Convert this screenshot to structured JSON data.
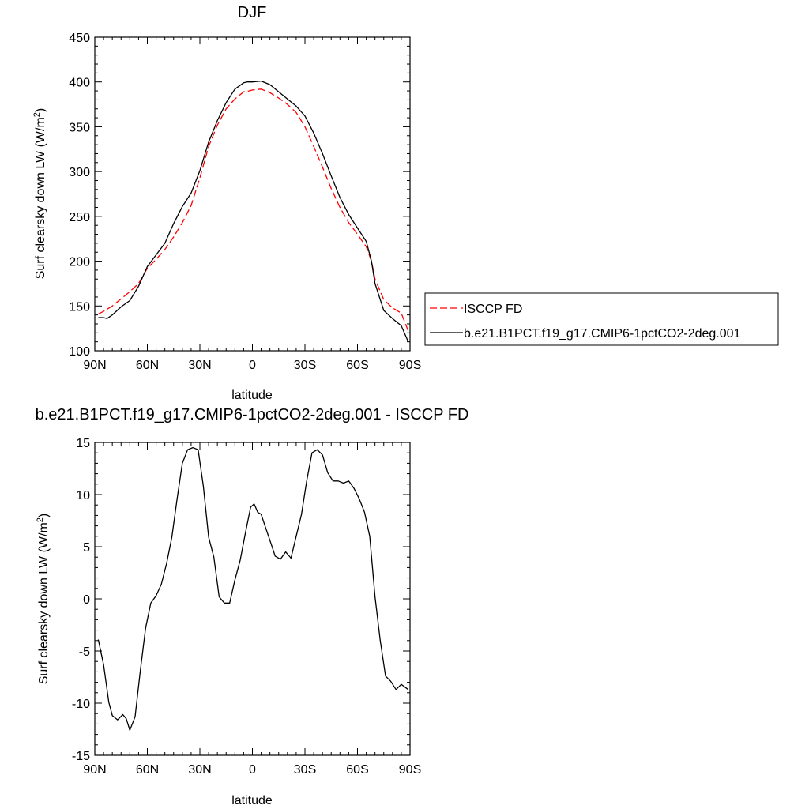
{
  "chart_data": [
    {
      "type": "line",
      "title": "DJF",
      "xlabel": "latitude",
      "ylabel": "Surf clearsky down LW (W/m",
      "ylabel_sup": "2",
      "ylabel_end": ")",
      "xlim": [
        90,
        -90
      ],
      "ylim": [
        100,
        450
      ],
      "x_ticks": [
        {
          "value": 90,
          "label": "90N"
        },
        {
          "value": 60,
          "label": "60N"
        },
        {
          "value": 30,
          "label": "30N"
        },
        {
          "value": 0,
          "label": "0"
        },
        {
          "value": -30,
          "label": "30S"
        },
        {
          "value": -60,
          "label": "60S"
        },
        {
          "value": -90,
          "label": "90S"
        }
      ],
      "y_ticks": [
        100,
        150,
        200,
        250,
        300,
        350,
        400,
        450
      ],
      "grid": false,
      "legend_position": "right",
      "series": [
        {
          "name": "ISCCP FD",
          "style": "dashed",
          "color": "#ff0000",
          "x": [
            88,
            85,
            80,
            75,
            70,
            65,
            60,
            55,
            50,
            45,
            40,
            35,
            30,
            25,
            20,
            15,
            10,
            5,
            2,
            0,
            -5,
            -10,
            -15,
            -20,
            -25,
            -30,
            -35,
            -40,
            -45,
            -50,
            -55,
            -60,
            -65,
            -68,
            -70,
            -75,
            -80,
            -85,
            -89
          ],
          "y": [
            141,
            144,
            150,
            158,
            166,
            175,
            192,
            202,
            213,
            227,
            243,
            262,
            293,
            328,
            352,
            370,
            381,
            389,
            390,
            391,
            392,
            388,
            382,
            375,
            366,
            350,
            328,
            305,
            281,
            260,
            243,
            230,
            216,
            200,
            180,
            157,
            148,
            142,
            122
          ]
        },
        {
          "name": "b.e21.B1PCT.f19_g17.CMIP6-1pctCO2-2deg.001",
          "style": "solid",
          "color": "#000000",
          "x": [
            88,
            85,
            83,
            80,
            75,
            70,
            65,
            60,
            55,
            50,
            45,
            40,
            35,
            30,
            25,
            20,
            15,
            10,
            5,
            3,
            0,
            -5,
            -10,
            -15,
            -20,
            -25,
            -30,
            -35,
            -40,
            -45,
            -50,
            -55,
            -60,
            -65,
            -68,
            -70,
            -75,
            -80,
            -85,
            -89
          ],
          "y": [
            137,
            137,
            136,
            140,
            149,
            156,
            172,
            194,
            207,
            220,
            242,
            261,
            276,
            301,
            333,
            357,
            377,
            392,
            399,
            400,
            400,
            401,
            397,
            389,
            381,
            373,
            362,
            343,
            320,
            295,
            271,
            252,
            237,
            222,
            200,
            175,
            145,
            136,
            128,
            110
          ]
        }
      ]
    },
    {
      "type": "line",
      "title": "b.e21.B1PCT.f19_g17.CMIP6-1pctCO2-2deg.001 - ISCCP FD",
      "xlabel": "latitude",
      "ylabel": "Surf clearsky down LW (W/m",
      "ylabel_sup": "2",
      "ylabel_end": ")",
      "xlim": [
        90,
        -90
      ],
      "ylim": [
        -15,
        15
      ],
      "x_ticks": [
        {
          "value": 90,
          "label": "90N"
        },
        {
          "value": 60,
          "label": "60N"
        },
        {
          "value": 30,
          "label": "30N"
        },
        {
          "value": 0,
          "label": "0"
        },
        {
          "value": -30,
          "label": "30S"
        },
        {
          "value": -60,
          "label": "60S"
        },
        {
          "value": -90,
          "label": "90S"
        }
      ],
      "y_ticks": [
        -15,
        -10,
        -5,
        0,
        5,
        10,
        15
      ],
      "grid": false,
      "series": [
        {
          "style": "solid",
          "color": "#000000",
          "x": [
            88,
            85,
            82,
            80,
            77,
            74,
            72,
            70,
            67,
            64,
            61,
            58,
            55,
            52,
            49,
            46,
            43,
            40,
            37,
            34,
            31,
            28,
            25,
            22,
            19,
            16,
            13,
            10,
            7,
            4,
            1,
            -1,
            -3,
            -5,
            -7,
            -10,
            -13,
            -16,
            -19,
            -22,
            -25,
            -28,
            -31,
            -34,
            -37,
            -40,
            -43,
            -46,
            -49,
            -52,
            -55,
            -58,
            -61,
            -64,
            -67,
            -70,
            -73,
            -76,
            -79,
            -82,
            -85,
            -89
          ],
          "y": [
            -3.9,
            -6.3,
            -9.9,
            -11.2,
            -11.6,
            -11.1,
            -11.5,
            -12.6,
            -11.3,
            -6.9,
            -2.8,
            -0.4,
            0.3,
            1.4,
            3.4,
            5.9,
            9.6,
            13.0,
            14.3,
            14.5,
            14.3,
            10.8,
            5.9,
            4.0,
            0.2,
            -0.4,
            -0.4,
            1.8,
            3.7,
            6.3,
            8.8,
            9.1,
            8.3,
            8.1,
            7.1,
            5.6,
            4.1,
            3.8,
            4.5,
            3.9,
            6.0,
            8.1,
            11.3,
            14.0,
            14.3,
            13.8,
            12.1,
            11.3,
            11.3,
            11.1,
            11.3,
            10.6,
            9.6,
            8.3,
            6.0,
            0.2,
            -4.0,
            -7.4,
            -7.9,
            -8.7,
            -8.2,
            -8.7
          ]
        }
      ]
    }
  ]
}
